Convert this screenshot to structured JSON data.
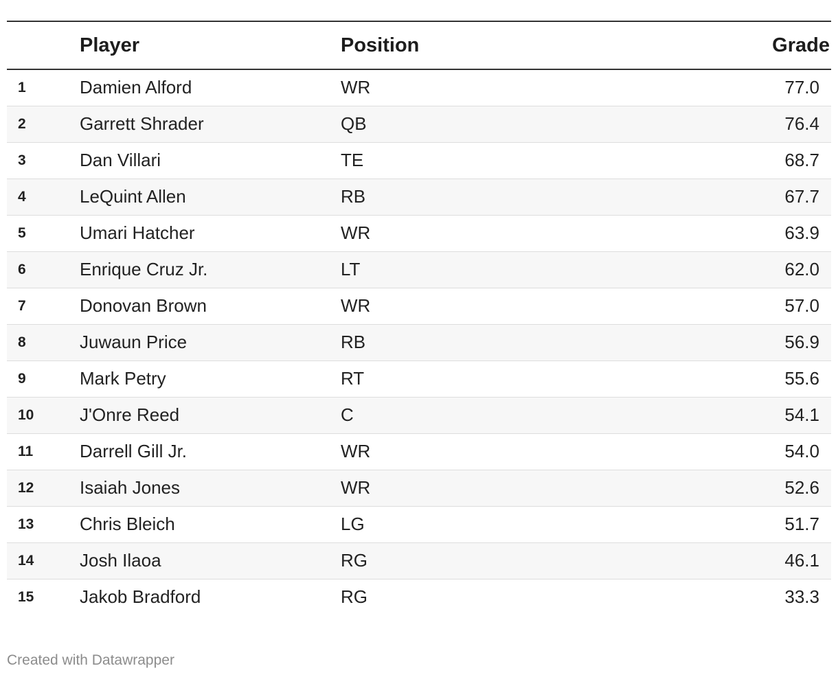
{
  "chart_data": {
    "type": "table",
    "columns": [
      "",
      "Player",
      "Position",
      "Grade"
    ],
    "rows": [
      {
        "rank": "1",
        "player": "Damien Alford",
        "position": "WR",
        "grade": "77.0"
      },
      {
        "rank": "2",
        "player": "Garrett Shrader",
        "position": "QB",
        "grade": "76.4"
      },
      {
        "rank": "3",
        "player": "Dan Villari",
        "position": "TE",
        "grade": "68.7"
      },
      {
        "rank": "4",
        "player": "LeQuint Allen",
        "position": "RB",
        "grade": "67.7"
      },
      {
        "rank": "5",
        "player": "Umari Hatcher",
        "position": "WR",
        "grade": "63.9"
      },
      {
        "rank": "6",
        "player": "Enrique Cruz Jr.",
        "position": "LT",
        "grade": "62.0"
      },
      {
        "rank": "7",
        "player": "Donovan Brown",
        "position": "WR",
        "grade": "57.0"
      },
      {
        "rank": "8",
        "player": "Juwaun Price",
        "position": "RB",
        "grade": "56.9"
      },
      {
        "rank": "9",
        "player": "Mark Petry",
        "position": "RT",
        "grade": "55.6"
      },
      {
        "rank": "10",
        "player": "J'Onre Reed",
        "position": "C",
        "grade": "54.1"
      },
      {
        "rank": "11",
        "player": "Darrell Gill Jr.",
        "position": "WR",
        "grade": "54.0"
      },
      {
        "rank": "12",
        "player": "Isaiah Jones",
        "position": "WR",
        "grade": "52.6"
      },
      {
        "rank": "13",
        "player": "Chris Bleich",
        "position": "LG",
        "grade": "51.7"
      },
      {
        "rank": "14",
        "player": "Josh Ilaoa",
        "position": "RG",
        "grade": "46.1"
      },
      {
        "rank": "15",
        "player": "Jakob Bradford",
        "position": "RG",
        "grade": "33.3"
      }
    ]
  },
  "footer": {
    "credit": "Created with Datawrapper"
  }
}
